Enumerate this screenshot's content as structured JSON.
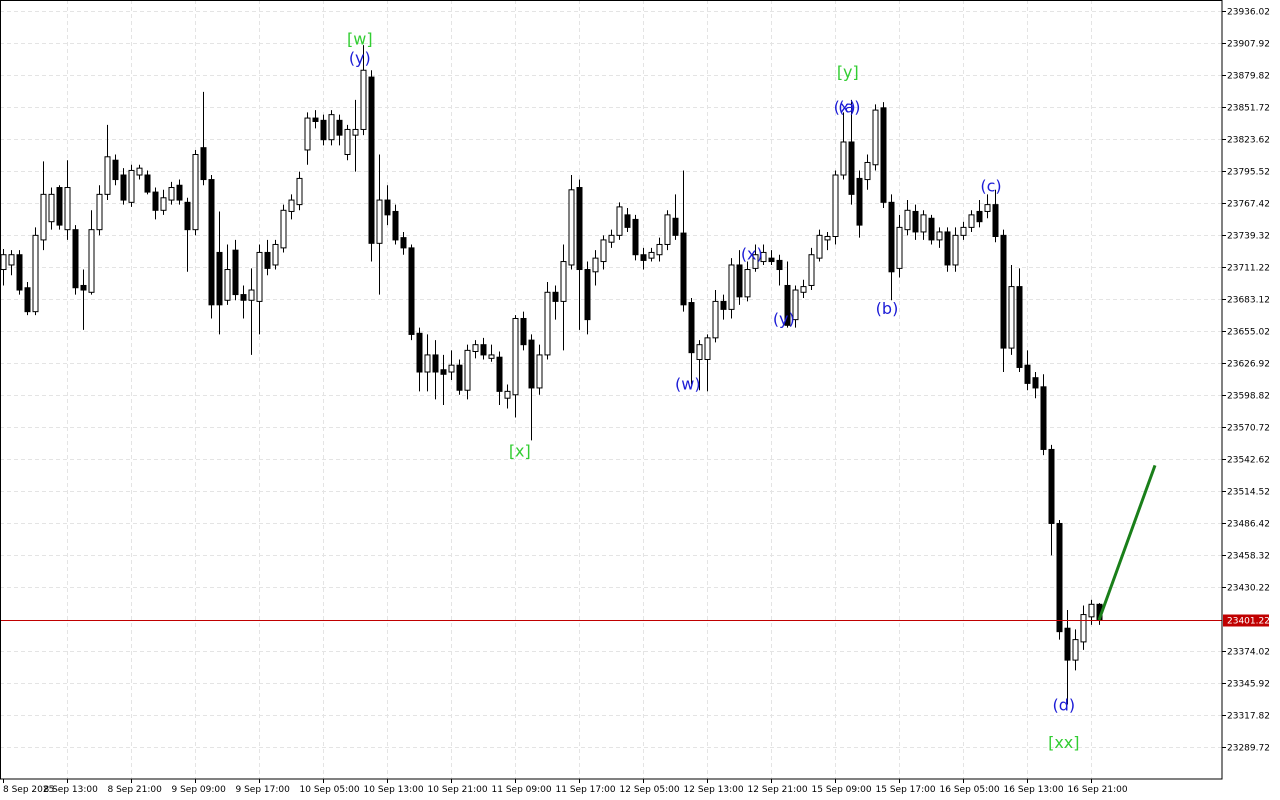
{
  "chart_data": {
    "type": "candlestick",
    "up_color": "#ffffff",
    "down_color": "#000000",
    "edge_color": "#000000",
    "grid": true,
    "xlim": [
      -0.375,
      152.375
    ],
    "ylim": [
      23261.6,
      23945.68
    ],
    "yticks": [
      23936.02,
      23907.92,
      23879.82,
      23851.72,
      23823.62,
      23795.52,
      23767.42,
      23739.32,
      23711.22,
      23683.12,
      23655.02,
      23626.92,
      23598.82,
      23570.72,
      23542.62,
      23514.52,
      23486.42,
      23458.32,
      23430.22,
      23374.02,
      23345.92,
      23317.82,
      23289.72
    ],
    "xticks": [
      {
        "value": 0,
        "label": "8 Sep 2025"
      },
      {
        "value": 8,
        "label": "8 Sep 13:00"
      },
      {
        "value": 16,
        "label": "8 Sep 21:00"
      },
      {
        "value": 24,
        "label": "9 Sep 09:00"
      },
      {
        "value": 32,
        "label": "9 Sep 17:00"
      },
      {
        "value": 40,
        "label": "10 Sep 05:00"
      },
      {
        "value": 48,
        "label": "10 Sep 13:00"
      },
      {
        "value": 56,
        "label": "10 Sep 21:00"
      },
      {
        "value": 64,
        "label": "11 Sep 09:00"
      },
      {
        "value": 72,
        "label": "11 Sep 17:00"
      },
      {
        "value": 80,
        "label": "12 Sep 05:00"
      },
      {
        "value": 88,
        "label": "12 Sep 13:00"
      },
      {
        "value": 96,
        "label": "12 Sep 21:00"
      },
      {
        "value": 104,
        "label": "15 Sep 09:00"
      },
      {
        "value": 112,
        "label": "15 Sep 17:00"
      },
      {
        "value": 120,
        "label": "16 Sep 05:00"
      },
      {
        "value": 128,
        "label": "16 Sep 13:00"
      },
      {
        "value": 136,
        "label": "16 Sep 21:00"
      }
    ],
    "current_price": 23401.22,
    "current_price_color": "#c00000",
    "ohlc": [
      [
        23709,
        23727,
        23695,
        23722
      ],
      [
        23713,
        23726,
        23704,
        23722
      ],
      [
        23722,
        23726,
        23687,
        23691
      ],
      [
        23693,
        23698,
        23669,
        23672
      ],
      [
        23672,
        23746,
        23669,
        23739
      ],
      [
        23735,
        23804,
        23726,
        23775
      ],
      [
        23751,
        23781,
        23744,
        23775
      ],
      [
        23781,
        23783,
        23744,
        23748
      ],
      [
        23744,
        23805,
        23735,
        23781
      ],
      [
        23744,
        23748,
        23687,
        23693
      ],
      [
        23695,
        23709,
        23656,
        23691
      ],
      [
        23689,
        23761,
        23687,
        23744
      ],
      [
        23744,
        23783,
        23739,
        23775
      ],
      [
        23775,
        23836,
        23770,
        23808
      ],
      [
        23805,
        23810,
        23783,
        23788
      ],
      [
        23792,
        23798,
        23766,
        23770
      ],
      [
        23768,
        23801,
        23764,
        23796
      ],
      [
        23792,
        23801,
        23788,
        23798
      ],
      [
        23792,
        23796,
        23775,
        23777
      ],
      [
        23777,
        23781,
        23753,
        23761
      ],
      [
        23761,
        23779,
        23757,
        23772
      ],
      [
        23770,
        23786,
        23766,
        23781
      ],
      [
        23783,
        23788,
        23766,
        23770
      ],
      [
        23768,
        23772,
        23707,
        23744
      ],
      [
        23744,
        23814,
        23739,
        23810
      ],
      [
        23816,
        23865,
        23783,
        23788
      ],
      [
        23788,
        23792,
        23666,
        23678
      ],
      [
        23724,
        23760,
        23652,
        23678
      ],
      [
        23682,
        23731,
        23678,
        23709
      ],
      [
        23726,
        23735,
        23682,
        23687
      ],
      [
        23687,
        23695,
        23666,
        23682
      ],
      [
        23682,
        23710,
        23634,
        23691
      ],
      [
        23681,
        23731,
        23652,
        23724
      ],
      [
        23724,
        23735,
        23704,
        23710
      ],
      [
        23713,
        23735,
        23709,
        23731
      ],
      [
        23728,
        23766,
        23724,
        23761
      ],
      [
        23760,
        23775,
        23753,
        23770
      ],
      [
        23766,
        23795,
        23761,
        23789
      ],
      [
        23814,
        23847,
        23801,
        23842
      ],
      [
        23842,
        23849,
        23833,
        23839
      ],
      [
        23840,
        23845,
        23818,
        23823
      ],
      [
        23823,
        23849,
        23818,
        23845
      ],
      [
        23840,
        23845,
        23818,
        23827
      ],
      [
        23810,
        23836,
        23805,
        23832
      ],
      [
        23827,
        23858,
        23795,
        23832
      ],
      [
        23832,
        23906,
        23827,
        23884
      ],
      [
        23878,
        23884,
        23716,
        23732
      ],
      [
        23732,
        23810,
        23687,
        23770
      ],
      [
        23770,
        23783,
        23748,
        23757
      ],
      [
        23760,
        23766,
        23731,
        23735
      ],
      [
        23737,
        23742,
        23722,
        23728
      ],
      [
        23728,
        23731,
        23647,
        23652
      ],
      [
        23653,
        23658,
        23602,
        23619
      ],
      [
        23619,
        23652,
        23602,
        23634
      ],
      [
        23634,
        23647,
        23595,
        23619
      ],
      [
        23621,
        23634,
        23590,
        23617
      ],
      [
        23619,
        23638,
        23612,
        23625
      ],
      [
        23625,
        23630,
        23599,
        23603
      ],
      [
        23603,
        23643,
        23595,
        23638
      ],
      [
        23637,
        23647,
        23631,
        23643
      ],
      [
        23643,
        23649,
        23630,
        23634
      ],
      [
        23631,
        23643,
        23628,
        23634
      ],
      [
        23632,
        23637,
        23590,
        23602
      ],
      [
        23596,
        23608,
        23587,
        23602
      ],
      [
        23599,
        23669,
        23579,
        23666
      ],
      [
        23666,
        23672,
        23638,
        23643
      ],
      [
        23647,
        23652,
        23559,
        23605
      ],
      [
        23605,
        23643,
        23599,
        23634
      ],
      [
        23634,
        23698,
        23630,
        23689
      ],
      [
        23689,
        23695,
        23665,
        23681
      ],
      [
        23681,
        23731,
        23638,
        23716
      ],
      [
        23713,
        23792,
        23709,
        23779
      ],
      [
        23781,
        23788,
        23656,
        23709
      ],
      [
        23709,
        23716,
        23652,
        23665
      ],
      [
        23707,
        23726,
        23695,
        23719
      ],
      [
        23716,
        23739,
        23709,
        23735
      ],
      [
        23733,
        23744,
        23728,
        23739
      ],
      [
        23739,
        23768,
        23735,
        23764
      ],
      [
        23757,
        23763,
        23742,
        23746
      ],
      [
        23753,
        23757,
        23717,
        23722
      ],
      [
        23722,
        23728,
        23709,
        23717
      ],
      [
        23719,
        23728,
        23716,
        23724
      ],
      [
        23722,
        23737,
        23716,
        23731
      ],
      [
        23731,
        23761,
        23726,
        23757
      ],
      [
        23754,
        23775,
        23735,
        23739
      ],
      [
        23741,
        23796,
        23672,
        23678
      ],
      [
        23680,
        23684,
        23608,
        23636
      ],
      [
        23630,
        23647,
        23603,
        23643
      ],
      [
        23630,
        23652,
        23602,
        23649
      ],
      [
        23649,
        23691,
        23645,
        23681
      ],
      [
        23681,
        23687,
        23665,
        23674
      ],
      [
        23674,
        23719,
        23666,
        23713
      ],
      [
        23713,
        23726,
        23678,
        23685
      ],
      [
        23685,
        23716,
        23681,
        23709
      ],
      [
        23710,
        23731,
        23707,
        23722
      ],
      [
        23716,
        23731,
        23713,
        23724
      ],
      [
        23719,
        23726,
        23713,
        23716
      ],
      [
        23717,
        23722,
        23695,
        23709
      ],
      [
        23695,
        23716,
        23658,
        23660
      ],
      [
        23665,
        23695,
        23658,
        23691
      ],
      [
        23689,
        23700,
        23684,
        23694
      ],
      [
        23695,
        23728,
        23691,
        23722
      ],
      [
        23719,
        23744,
        23716,
        23739
      ],
      [
        23735,
        23742,
        23726,
        23738
      ],
      [
        23738,
        23796,
        23731,
        23792
      ],
      [
        23792,
        23847,
        23788,
        23821
      ],
      [
        23821,
        23858,
        23766,
        23775
      ],
      [
        23789,
        23796,
        23737,
        23748
      ],
      [
        23788,
        23810,
        23779,
        23803
      ],
      [
        23801,
        23854,
        23796,
        23849
      ],
      [
        23851,
        23856,
        23763,
        23768
      ],
      [
        23768,
        23775,
        23682,
        23707
      ],
      [
        23710,
        23757,
        23702,
        23746
      ],
      [
        23744,
        23770,
        23739,
        23761
      ],
      [
        23760,
        23766,
        23735,
        23742
      ],
      [
        23742,
        23761,
        23735,
        23757
      ],
      [
        23754,
        23757,
        23731,
        23735
      ],
      [
        23735,
        23746,
        23728,
        23742
      ],
      [
        23742,
        23746,
        23707,
        23713
      ],
      [
        23713,
        23746,
        23707,
        23739
      ],
      [
        23739,
        23751,
        23735,
        23746
      ],
      [
        23746,
        23761,
        23742,
        23757
      ],
      [
        23760,
        23770,
        23746,
        23751
      ],
      [
        23760,
        23775,
        23754,
        23766
      ],
      [
        23766,
        23779,
        23733,
        23738
      ],
      [
        23739,
        23744,
        23619,
        23640
      ],
      [
        23640,
        23713,
        23634,
        23694
      ],
      [
        23694,
        23710,
        23619,
        23623
      ],
      [
        23625,
        23638,
        23603,
        23609
      ],
      [
        23614,
        23619,
        23596,
        23605
      ],
      [
        23606,
        23617,
        23546,
        23551
      ],
      [
        23551,
        23555,
        23458,
        23486
      ],
      [
        23486,
        23489,
        23384,
        23391
      ],
      [
        23394,
        23410,
        23327,
        23366
      ],
      [
        23366,
        23393,
        23357,
        23384
      ],
      [
        23382,
        23414,
        23375,
        23406
      ],
      [
        23404,
        23419,
        23397,
        23415
      ],
      [
        23415,
        23416,
        23397,
        23401.22
      ]
    ],
    "waves": [
      {
        "text": "[w]",
        "index": 44.6,
        "price": 23912,
        "color": "#32cd32"
      },
      {
        "text": "(y)",
        "index": 44.6,
        "price": 23895,
        "color": "#1c1cd6"
      },
      {
        "text": "[x]",
        "index": 64.6,
        "price": 23550,
        "color": "#32cd32"
      },
      {
        "text": "(w)",
        "index": 85.6,
        "price": 23609,
        "color": "#1c1cd6"
      },
      {
        "text": "(x)",
        "index": 93.6,
        "price": 23723,
        "color": "#1c1cd6"
      },
      {
        "text": "(y)",
        "index": 97.6,
        "price": 23666,
        "color": "#1c1cd6"
      },
      {
        "text": "[y]",
        "index": 105.6,
        "price": 23883,
        "color": "#32cd32"
      },
      {
        "text": "(x)",
        "index": 105.2,
        "price": 23852,
        "color": "#1c1cd6"
      },
      {
        "text": "(a)",
        "index": 105.8,
        "price": 23852,
        "color": "#1c1cd6"
      },
      {
        "text": "(b)",
        "index": 110.5,
        "price": 23675,
        "color": "#1c1cd6"
      },
      {
        "text": "(c)",
        "index": 123.5,
        "price": 23783,
        "color": "#1c1cd6"
      },
      {
        "text": "(d)",
        "index": 132.6,
        "price": 23327,
        "color": "#1c1cd6"
      },
      {
        "text": "[xx]",
        "index": 132.6,
        "price": 23294,
        "color": "#32cd32"
      }
    ],
    "forecast": {
      "x": [
        137,
        144
      ],
      "values": [
        23401.22,
        23537
      ],
      "color": "#1a7f1a"
    }
  }
}
